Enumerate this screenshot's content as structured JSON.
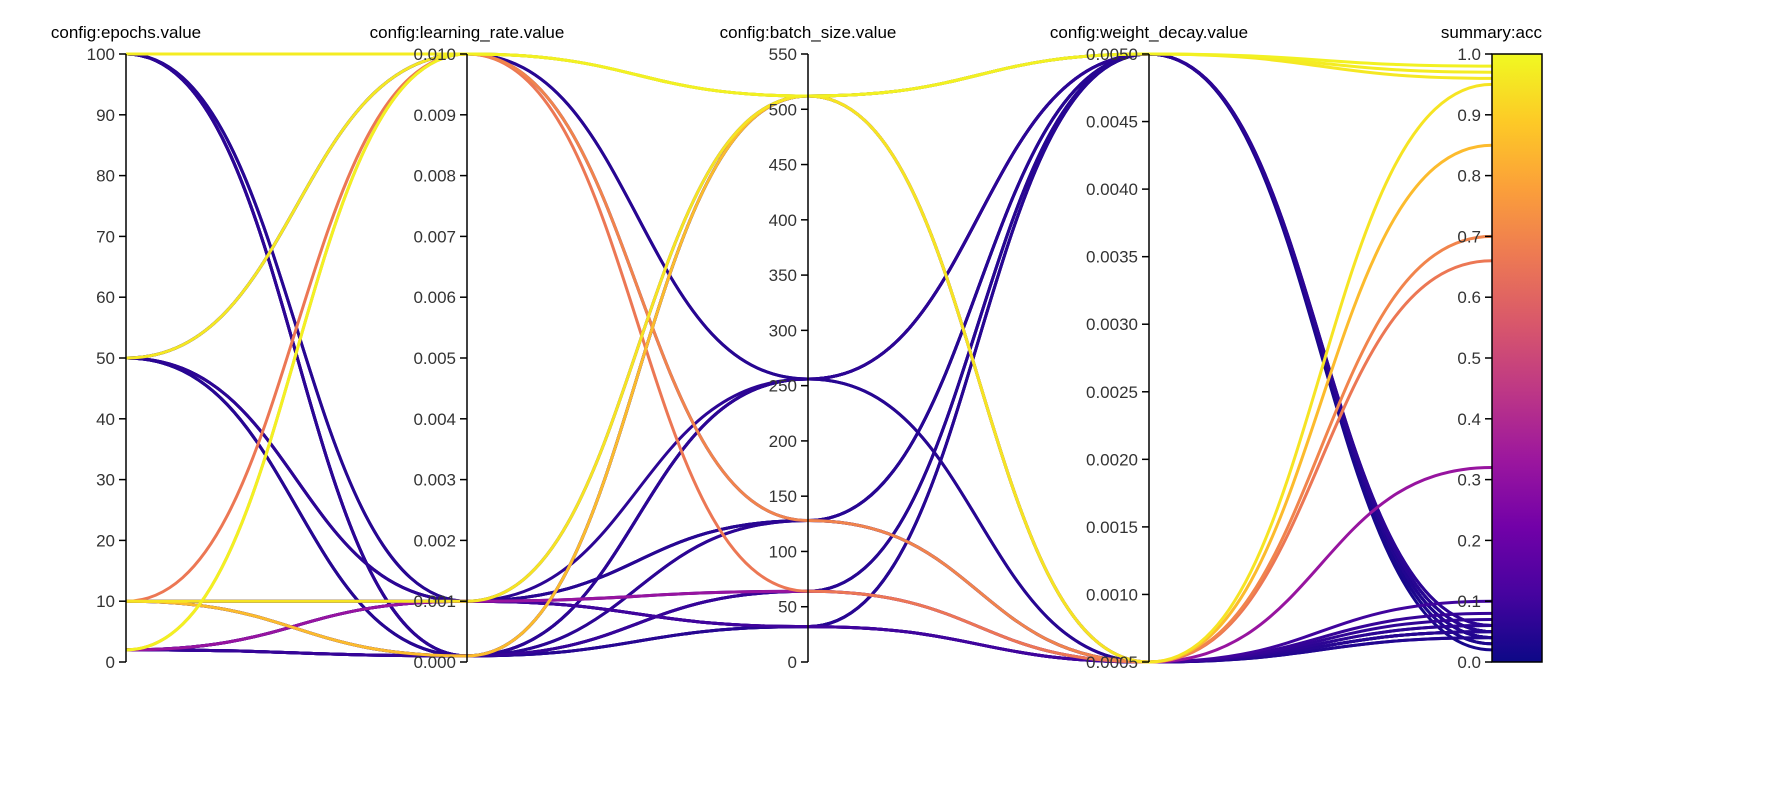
{
  "chart_data": {
    "type": "parallel_coordinates",
    "axes": [
      {
        "name": "config:epochs.value",
        "min": 0,
        "max": 100,
        "ticks": [
          0,
          10,
          20,
          30,
          40,
          50,
          60,
          70,
          80,
          90,
          100
        ],
        "tick_labels": [
          "0",
          "10",
          "20",
          "30",
          "40",
          "50",
          "60",
          "70",
          "80",
          "90",
          "100"
        ]
      },
      {
        "name": "config:learning_rate.value",
        "min": 0.0,
        "max": 0.01,
        "ticks": [
          0,
          0.001,
          0.002,
          0.003,
          0.004,
          0.005,
          0.006,
          0.007,
          0.008,
          0.009,
          0.01
        ],
        "tick_labels": [
          "0.000",
          "0.001",
          "0.002",
          "0.003",
          "0.004",
          "0.005",
          "0.006",
          "0.007",
          "0.008",
          "0.009",
          "0.010"
        ]
      },
      {
        "name": "config:batch_size.value",
        "min": 0,
        "max": 550,
        "ticks": [
          0,
          50,
          100,
          150,
          200,
          250,
          300,
          350,
          400,
          450,
          500,
          550
        ],
        "tick_labels": [
          "0",
          "50",
          "100",
          "150",
          "200",
          "250",
          "300",
          "350",
          "400",
          "450",
          "500",
          "550"
        ]
      },
      {
        "name": "config:weight_decay.value",
        "min": 0.0005,
        "max": 0.005,
        "ticks": [
          0.0005,
          0.001,
          0.0015,
          0.002,
          0.0025,
          0.003,
          0.0035,
          0.004,
          0.0045,
          0.005
        ],
        "tick_labels": [
          "0.0005",
          "0.0010",
          "0.0015",
          "0.0020",
          "0.0025",
          "0.0030",
          "0.0035",
          "0.0040",
          "0.0045",
          "0.0050"
        ]
      },
      {
        "name": "summary:acc",
        "min": 0.0,
        "max": 1.0,
        "ticks": [
          0,
          0.1,
          0.2,
          0.3,
          0.4,
          0.5,
          0.6,
          0.7,
          0.8,
          0.9,
          1.0
        ],
        "tick_labels": [
          "0.0",
          "0.1",
          "0.2",
          "0.3",
          "0.4",
          "0.5",
          "0.6",
          "0.7",
          "0.8",
          "0.9",
          "1.0"
        ]
      }
    ],
    "colorscale": {
      "name": "plasma",
      "range": [
        0.0,
        1.0
      ],
      "stops": [
        "#0d0887",
        "#46039f",
        "#7201a8",
        "#9c179e",
        "#bd3786",
        "#d8576b",
        "#ed7953",
        "#fb9f3a",
        "#fdca26",
        "#f0f921"
      ]
    },
    "runs": [
      [
        100,
        0.01,
        512,
        0.005,
        0.97
      ],
      [
        100,
        0.01,
        512,
        0.0005,
        0.05
      ],
      [
        100,
        0.0001,
        32,
        0.005,
        0.02
      ],
      [
        100,
        0.0001,
        64,
        0.005,
        0.03
      ],
      [
        100,
        0.0001,
        128,
        0.0005,
        0.04
      ],
      [
        100,
        0.0001,
        256,
        0.005,
        0.06
      ],
      [
        100,
        0.001,
        32,
        0.0005,
        0.05
      ],
      [
        100,
        0.001,
        64,
        0.005,
        0.04
      ],
      [
        50,
        0.01,
        512,
        0.005,
        0.96
      ],
      [
        50,
        0.01,
        256,
        0.0005,
        0.05
      ],
      [
        50,
        0.001,
        128,
        0.005,
        0.04
      ],
      [
        50,
        0.001,
        32,
        0.0005,
        0.06
      ],
      [
        50,
        0.0001,
        64,
        0.005,
        0.05
      ],
      [
        50,
        0.0001,
        512,
        0.005,
        0.03
      ],
      [
        50,
        0.0001,
        256,
        0.0005,
        0.04
      ],
      [
        50,
        0.001,
        512,
        0.0005,
        0.05
      ],
      [
        10,
        0.001,
        32,
        0.0005,
        0.1
      ],
      [
        10,
        0.001,
        128,
        0.005,
        0.05
      ],
      [
        10,
        0.01,
        64,
        0.0005,
        0.66
      ],
      [
        10,
        0.0001,
        256,
        0.005,
        0.04
      ],
      [
        10,
        0.0001,
        512,
        0.0005,
        0.85
      ],
      [
        10,
        0.0001,
        32,
        0.005,
        0.05
      ],
      [
        10,
        0.001,
        512,
        0.0005,
        0.95
      ],
      [
        2,
        0.01,
        512,
        0.005,
        0.98
      ],
      [
        2,
        0.01,
        128,
        0.0005,
        0.7
      ],
      [
        2,
        0.001,
        256,
        0.005,
        0.06
      ],
      [
        2,
        0.001,
        64,
        0.0005,
        0.32
      ],
      [
        2,
        0.001,
        128,
        0.005,
        0.05
      ],
      [
        2,
        0.0001,
        512,
        0.005,
        0.04
      ],
      [
        2,
        0.0001,
        64,
        0.0005,
        0.08
      ],
      [
        2,
        0.0001,
        32,
        0.005,
        0.05
      ],
      [
        2,
        0.0001,
        128,
        0.0005,
        0.06
      ],
      [
        2,
        0.0001,
        256,
        0.005,
        0.04
      ],
      [
        2,
        0.001,
        32,
        0.0005,
        0.07
      ],
      [
        100,
        0.01,
        256,
        0.005,
        0.05
      ],
      [
        50,
        0.01,
        128,
        0.005,
        0.04
      ]
    ]
  }
}
